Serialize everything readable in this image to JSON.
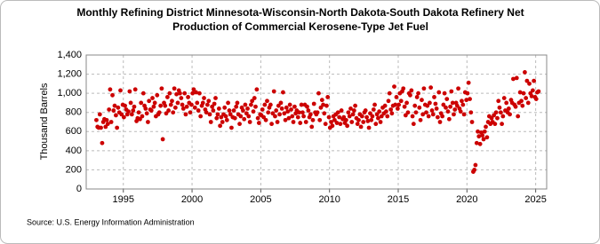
{
  "chart_data": {
    "type": "scatter",
    "title": "Monthly Refining District Minnesota-Wisconsin-North Dakota-South Dakota Refinery Net Production of Commercial Kerosene-Type Jet Fuel",
    "y_label": "Thousand Barrels",
    "source": "Source: U.S. Energy Information Administration",
    "color": "#cc0000",
    "grid": true,
    "xlim": [
      1992.3,
      2025.8
    ],
    "xticks": [
      1995,
      2000,
      2005,
      2010,
      2015,
      2020,
      2025
    ],
    "ylim": [
      0,
      1400
    ],
    "yticks": [
      0,
      200,
      400,
      600,
      800,
      {
        "value": 1000,
        "label": "1,000"
      },
      {
        "value": 1200,
        "label": "1,200"
      },
      {
        "value": 1400,
        "label": "1,400"
      }
    ],
    "x": [
      1993.04,
      1993.12,
      1993.21,
      1993.29,
      1993.37,
      1993.46,
      1993.54,
      1993.62,
      1993.71,
      1993.79,
      1993.87,
      1993.96,
      1994.04,
      1994.12,
      1994.21,
      1994.29,
      1994.37,
      1994.46,
      1994.54,
      1994.62,
      1994.71,
      1994.79,
      1994.87,
      1994.96,
      1995.04,
      1995.12,
      1995.21,
      1995.29,
      1995.37,
      1995.46,
      1995.54,
      1995.62,
      1995.71,
      1995.79,
      1995.87,
      1995.96,
      1996.04,
      1996.12,
      1996.21,
      1996.29,
      1996.37,
      1996.46,
      1996.54,
      1996.62,
      1996.71,
      1996.79,
      1996.87,
      1996.96,
      1997.04,
      1997.12,
      1997.21,
      1997.29,
      1997.37,
      1997.46,
      1997.54,
      1997.62,
      1997.71,
      1997.79,
      1997.87,
      1997.96,
      1998.04,
      1998.12,
      1998.21,
      1998.29,
      1998.37,
      1998.46,
      1998.54,
      1998.62,
      1998.71,
      1998.79,
      1998.87,
      1998.96,
      1999.04,
      1999.12,
      1999.21,
      1999.29,
      1999.37,
      1999.46,
      1999.54,
      1999.62,
      1999.71,
      1999.79,
      1999.87,
      1999.96,
      2000.04,
      2000.12,
      2000.21,
      2000.29,
      2000.37,
      2000.46,
      2000.54,
      2000.62,
      2000.71,
      2000.79,
      2000.87,
      2000.96,
      2001.04,
      2001.12,
      2001.21,
      2001.29,
      2001.37,
      2001.46,
      2001.54,
      2001.62,
      2001.71,
      2001.79,
      2001.87,
      2001.96,
      2002.04,
      2002.12,
      2002.21,
      2002.29,
      2002.37,
      2002.46,
      2002.54,
      2002.62,
      2002.71,
      2002.79,
      2002.87,
      2002.96,
      2003.04,
      2003.12,
      2003.21,
      2003.29,
      2003.37,
      2003.46,
      2003.54,
      2003.62,
      2003.71,
      2003.79,
      2003.87,
      2003.96,
      2004.04,
      2004.12,
      2004.21,
      2004.29,
      2004.37,
      2004.46,
      2004.54,
      2004.62,
      2004.71,
      2004.79,
      2004.87,
      2004.96,
      2005.04,
      2005.12,
      2005.21,
      2005.29,
      2005.37,
      2005.46,
      2005.54,
      2005.62,
      2005.71,
      2005.79,
      2005.87,
      2005.96,
      2006.04,
      2006.12,
      2006.21,
      2006.29,
      2006.37,
      2006.46,
      2006.54,
      2006.62,
      2006.71,
      2006.79,
      2006.87,
      2006.96,
      2007.04,
      2007.12,
      2007.21,
      2007.29,
      2007.37,
      2007.46,
      2007.54,
      2007.62,
      2007.71,
      2007.79,
      2007.87,
      2007.96,
      2008.04,
      2008.12,
      2008.21,
      2008.29,
      2008.37,
      2008.46,
      2008.54,
      2008.62,
      2008.71,
      2008.79,
      2008.87,
      2008.96,
      2009.04,
      2009.12,
      2009.21,
      2009.29,
      2009.37,
      2009.46,
      2009.54,
      2009.62,
      2009.71,
      2009.79,
      2009.87,
      2009.96,
      2010.04,
      2010.12,
      2010.21,
      2010.29,
      2010.37,
      2010.46,
      2010.54,
      2010.62,
      2010.71,
      2010.79,
      2010.87,
      2010.96,
      2011.04,
      2011.12,
      2011.21,
      2011.29,
      2011.37,
      2011.46,
      2011.54,
      2011.62,
      2011.71,
      2011.79,
      2011.87,
      2011.96,
      2012.04,
      2012.12,
      2012.21,
      2012.29,
      2012.37,
      2012.46,
      2012.54,
      2012.62,
      2012.71,
      2012.79,
      2012.87,
      2012.96,
      2013.04,
      2013.12,
      2013.21,
      2013.29,
      2013.37,
      2013.46,
      2013.54,
      2013.62,
      2013.71,
      2013.79,
      2013.87,
      2013.96,
      2014.04,
      2014.12,
      2014.21,
      2014.29,
      2014.37,
      2014.46,
      2014.54,
      2014.62,
      2014.71,
      2014.79,
      2014.87,
      2014.96,
      2015.04,
      2015.12,
      2015.21,
      2015.29,
      2015.37,
      2015.46,
      2015.54,
      2015.62,
      2015.71,
      2015.79,
      2015.87,
      2015.96,
      2016.04,
      2016.12,
      2016.21,
      2016.29,
      2016.37,
      2016.46,
      2016.54,
      2016.62,
      2016.71,
      2016.79,
      2016.87,
      2016.96,
      2017.04,
      2017.12,
      2017.21,
      2017.29,
      2017.37,
      2017.46,
      2017.54,
      2017.62,
      2017.71,
      2017.79,
      2017.87,
      2017.96,
      2018.04,
      2018.12,
      2018.21,
      2018.29,
      2018.37,
      2018.46,
      2018.54,
      2018.62,
      2018.71,
      2018.79,
      2018.87,
      2018.96,
      2019.04,
      2019.12,
      2019.21,
      2019.29,
      2019.37,
      2019.46,
      2019.54,
      2019.62,
      2019.71,
      2019.79,
      2019.87,
      2019.96,
      2020.04,
      2020.12,
      2020.21,
      2020.29,
      2020.37,
      2020.46,
      2020.54,
      2020.62,
      2020.71,
      2020.79,
      2020.87,
      2020.96,
      2021.04,
      2021.12,
      2021.21,
      2021.29,
      2021.37,
      2021.46,
      2021.54,
      2021.62,
      2021.71,
      2021.79,
      2021.87,
      2021.96,
      2022.04,
      2022.12,
      2022.21,
      2022.29,
      2022.37,
      2022.46,
      2022.54,
      2022.62,
      2022.71,
      2022.79,
      2022.87,
      2022.96,
      2023.04,
      2023.12,
      2023.21,
      2023.29,
      2023.37,
      2023.46,
      2023.54,
      2023.62,
      2023.71,
      2023.79,
      2023.87,
      2023.96,
      2024.04,
      2024.12,
      2024.21,
      2024.29,
      2024.37,
      2024.46,
      2024.54,
      2024.62,
      2024.71,
      2024.79,
      2024.87,
      2024.96,
      2025.04,
      2025.12,
      2025.21
    ],
    "values": [
      720,
      650,
      640,
      780,
      640,
      480,
      700,
      730,
      650,
      720,
      680,
      830,
      1040,
      700,
      980,
      820,
      870,
      770,
      640,
      850,
      800,
      1030,
      780,
      880,
      750,
      870,
      830,
      780,
      810,
      1020,
      900,
      780,
      820,
      860,
      1040,
      710,
      740,
      800,
      730,
      900,
      760,
      1000,
      870,
      840,
      790,
      700,
      920,
      830,
      820,
      950,
      860,
      900,
      760,
      980,
      780,
      800,
      870,
      1050,
      520,
      900,
      870,
      790,
      960,
      820,
      1000,
      880,
      920,
      800,
      1050,
      850,
      990,
      900,
      1030,
      1000,
      950,
      880,
      840,
      1000,
      780,
      860,
      960,
      900,
      800,
      880,
      1000,
      1040,
      850,
      1010,
      900,
      820,
      1000,
      760,
      870,
      900,
      950,
      830,
      800,
      880,
      920,
      780,
      700,
      860,
      820,
      890,
      950,
      740,
      780,
      840,
      660,
      750,
      700,
      780,
      850,
      760,
      720,
      900,
      820,
      780,
      640,
      750,
      820,
      740,
      860,
      900,
      780,
      680,
      760,
      850,
      820,
      730,
      880,
      790,
      840,
      760,
      700,
      880,
      920,
      810,
      950,
      860,
      1040,
      740,
      690,
      780,
      770,
      830,
      750,
      880,
      720,
      920,
      800,
      850,
      880,
      680,
      790,
      1020,
      760,
      820,
      700,
      870,
      780,
      900,
      840,
      1010,
      790,
      720,
      850,
      810,
      740,
      880,
      830,
      760,
      700,
      860,
      790,
      820,
      750,
      800,
      690,
      880,
      800,
      760,
      880,
      700,
      860,
      820,
      750,
      780,
      650,
      720,
      890,
      800,
      780,
      800,
      1000,
      720,
      850,
      930,
      880,
      790,
      680,
      870,
      960,
      750,
      640,
      700,
      660,
      760,
      720,
      780,
      690,
      800,
      750,
      680,
      820,
      730,
      750,
      690,
      720,
      660,
      800,
      760,
      840,
      700,
      780,
      820,
      870,
      740,
      680,
      720,
      780,
      650,
      760,
      700,
      800,
      820,
      750,
      710,
      640,
      790,
      720,
      760,
      830,
      880,
      680,
      780,
      740,
      810,
      700,
      760,
      850,
      790,
      870,
      810,
      760,
      920,
      1000,
      830,
      790,
      870,
      1070,
      880,
      960,
      840,
      880,
      1000,
      920,
      1020,
      1050,
      860,
      770,
      900,
      800,
      1000,
      980,
      1030,
      760,
      680,
      870,
      800,
      960,
      1000,
      850,
      720,
      930,
      780,
      1050,
      880,
      800,
      870,
      760,
      900,
      1060,
      820,
      780,
      960,
      890,
      840,
      750,
      1010,
      700,
      790,
      760,
      880,
      1000,
      850,
      940,
      810,
      730,
      860,
      1020,
      900,
      780,
      830,
      900,
      870,
      1050,
      840,
      810,
      920,
      880,
      780,
      1010,
      930,
      1000,
      1110,
      940,
      800,
      700,
      180,
      200,
      250,
      480,
      600,
      550,
      470,
      590,
      560,
      520,
      600,
      650,
      540,
      700,
      760,
      680,
      740,
      700,
      770,
      680,
      800,
      740,
      920,
      850,
      800,
      680,
      760,
      950,
      820,
      900,
      800,
      840,
      780,
      930,
      900,
      1150,
      880,
      860,
      1160,
      760,
      900,
      1010,
      920,
      870,
      1000,
      1220,
      950,
      1130,
      900,
      1100,
      1000,
      970,
      1030,
      1130,
      960,
      940,
      1010,
      1020
    ]
  }
}
